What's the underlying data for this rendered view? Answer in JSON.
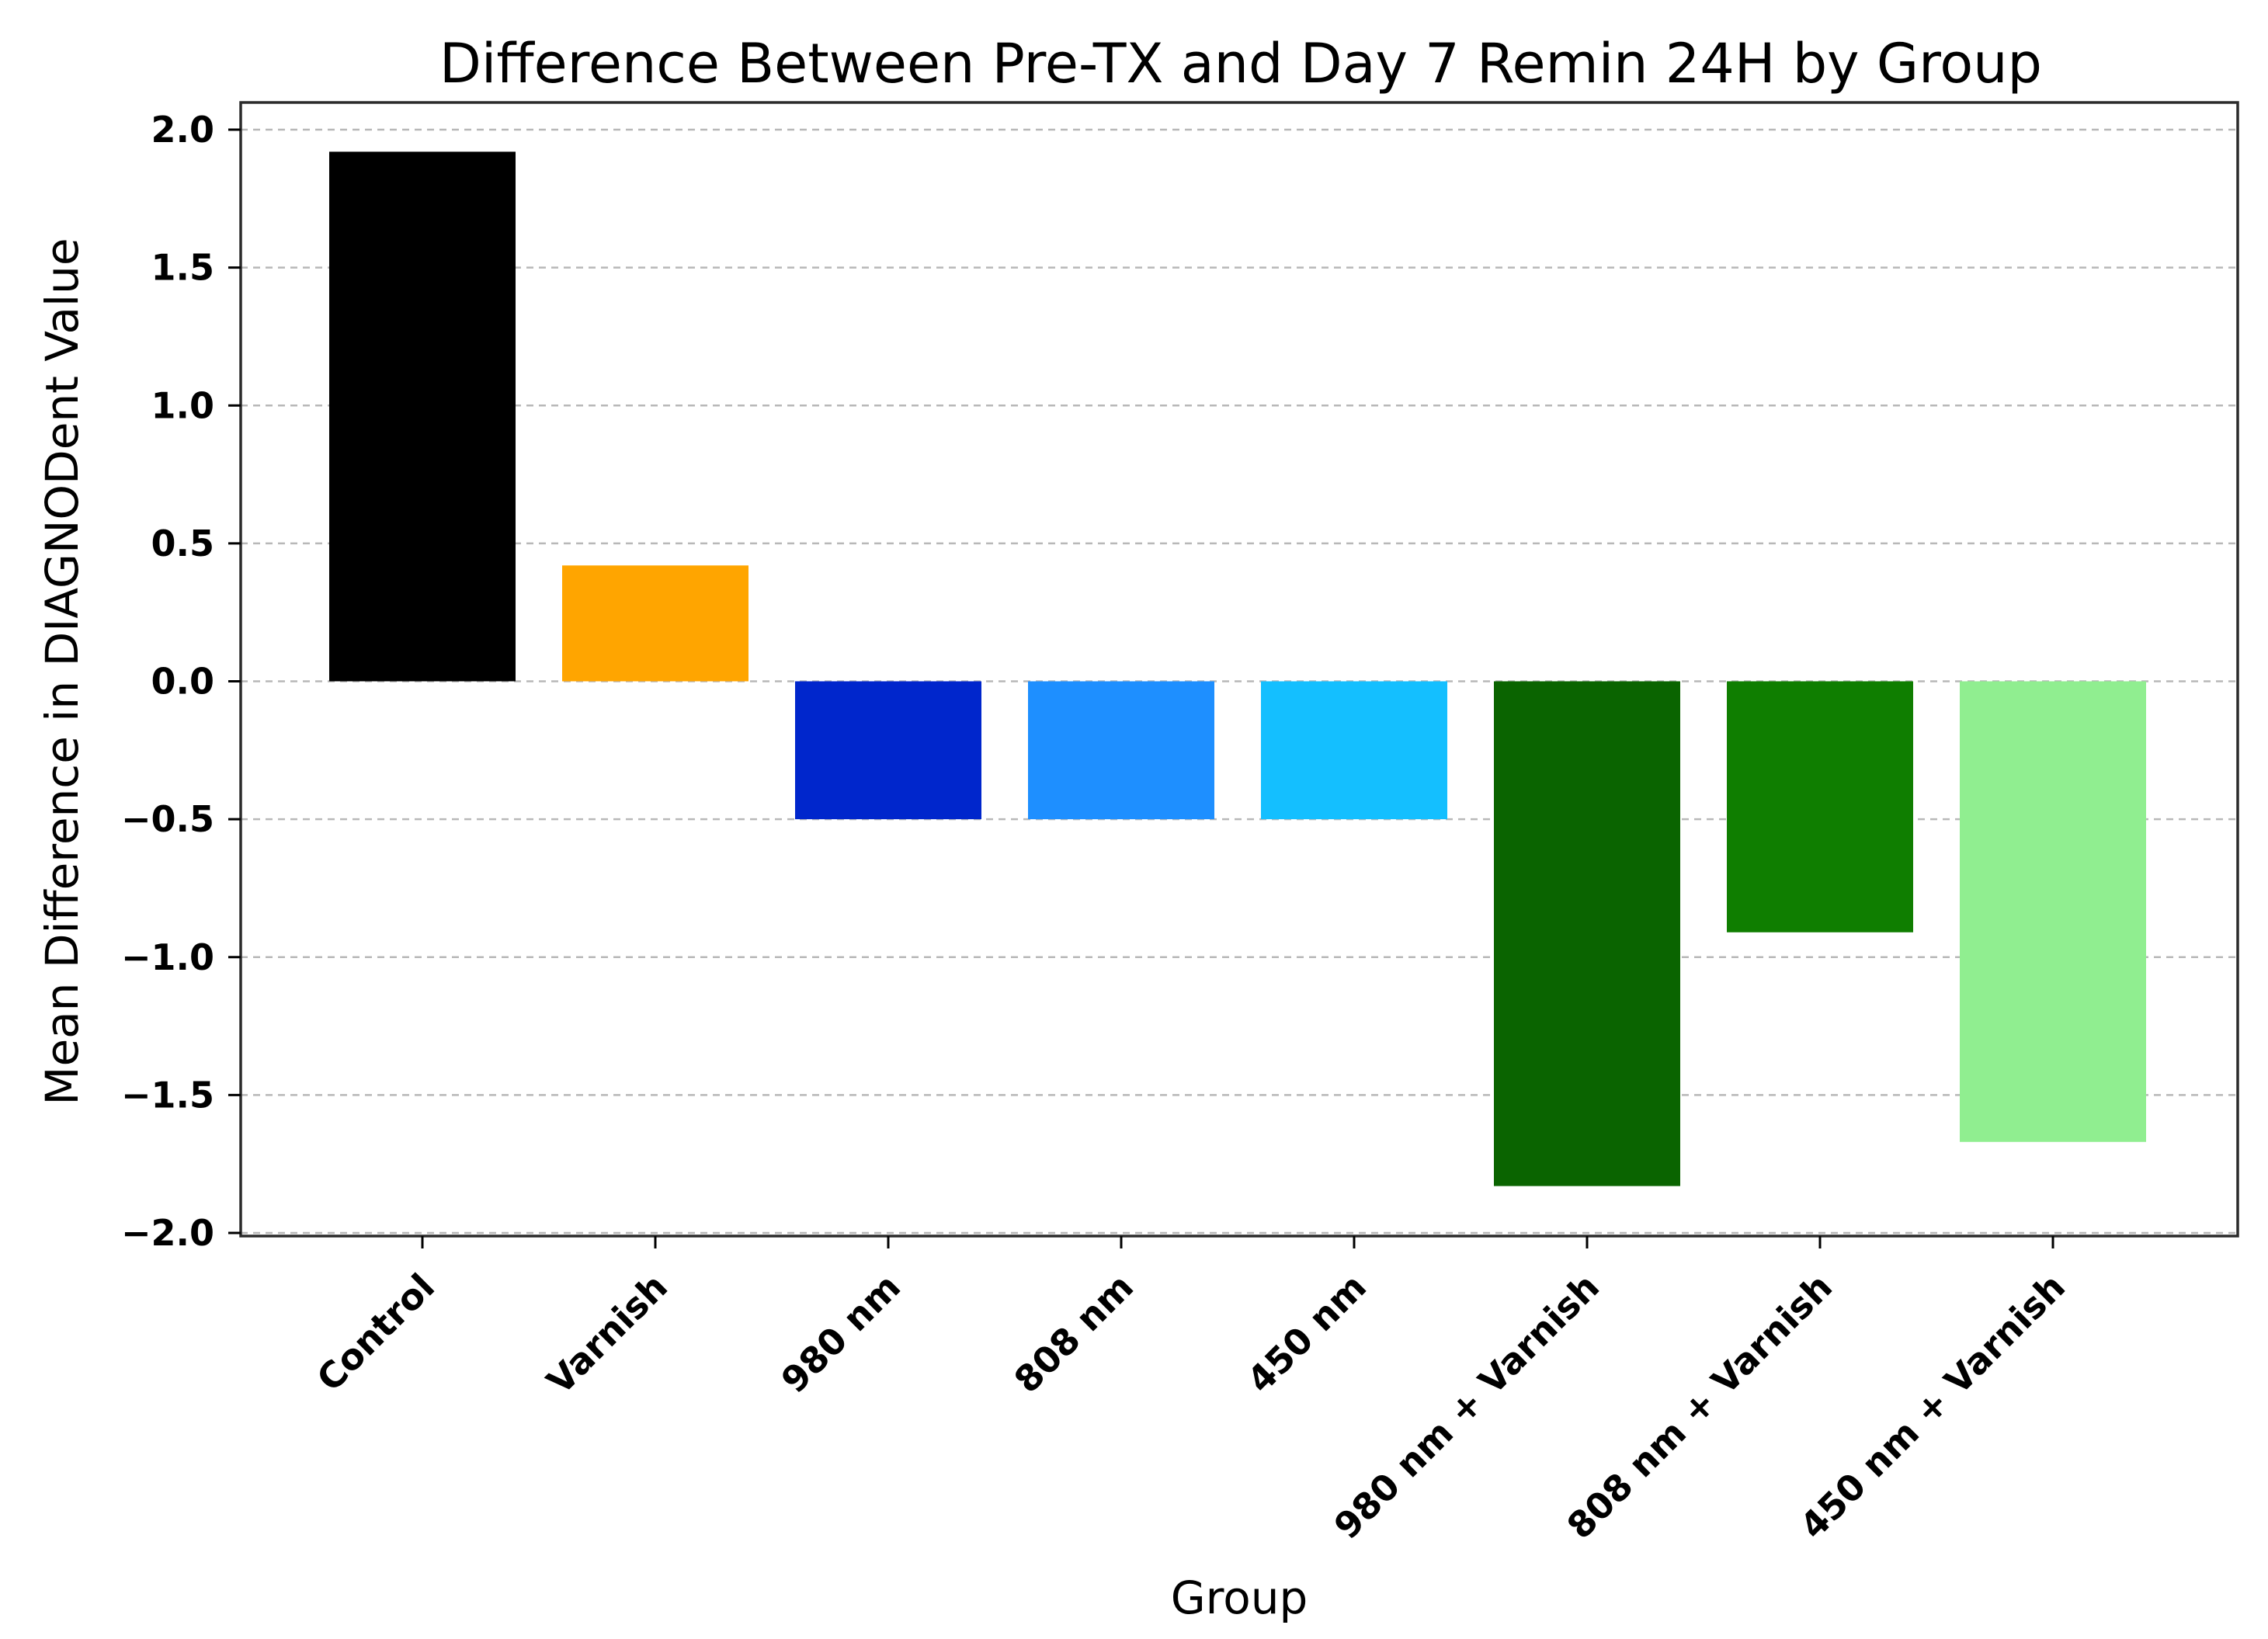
{
  "chart_data": {
    "type": "bar",
    "title": "Difference Between Pre-TX and Day 7 Remin 24H by Group",
    "xlabel": "Group",
    "ylabel": "Mean Difference in DIAGNODent Value",
    "categories": [
      "Control",
      "Varnish",
      "980 nm",
      "808 nm",
      "450 nm",
      "980 nm + Varnish",
      "808 nm + Varnish",
      "450 nm + Varnish"
    ],
    "values": [
      1.92,
      0.42,
      -0.5,
      -0.5,
      -0.5,
      -1.83,
      -0.91,
      -1.67
    ],
    "colors": [
      "#000000",
      "#ffa500",
      "#0026cc",
      "#1e8fff",
      "#14bfff",
      "#0a6400",
      "#0f7e00",
      "#90ee90"
    ],
    "ylim": [
      -2.0,
      2.0
    ],
    "yticks": [
      2.0,
      1.5,
      1.0,
      0.5,
      0.0,
      -0.5,
      -1.0,
      -1.5,
      -2.0
    ],
    "ytick_labels": [
      "2.0",
      "1.5",
      "1.0",
      "0.5",
      "0.0",
      "−0.5",
      "−1.0",
      "−1.5",
      "−2.0"
    ],
    "grid": "horizontal dashed",
    "legend": "none"
  }
}
